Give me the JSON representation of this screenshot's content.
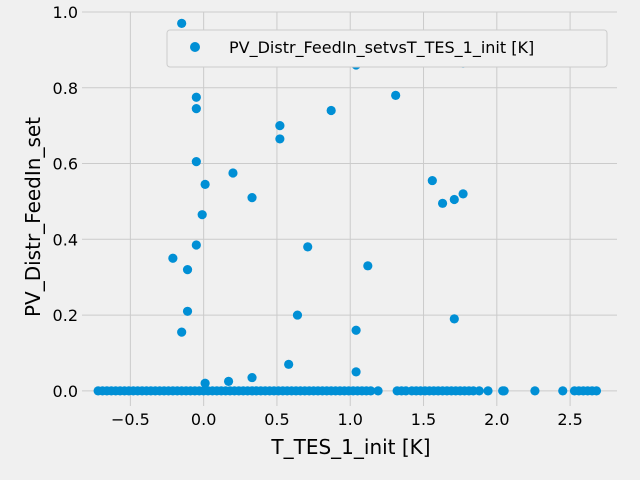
{
  "chart_data": {
    "type": "scatter",
    "xlabel": "T_TES_1_init [K]",
    "ylabel": "PV_Distr_FeedIn_set",
    "xlim": [
      -0.83,
      2.82
    ],
    "ylim": [
      -0.04,
      1.0
    ],
    "xticks": [
      "−0.5",
      "0.0",
      "0.5",
      "1.0",
      "1.5",
      "2.0",
      "2.5"
    ],
    "xtick_values": [
      -0.5,
      0.0,
      0.5,
      1.0,
      1.5,
      2.0,
      2.5
    ],
    "yticks": [
      "0.0",
      "0.2",
      "0.4",
      "0.6",
      "0.8",
      "1.0"
    ],
    "ytick_values": [
      0.0,
      0.2,
      0.4,
      0.6,
      0.8,
      1.0
    ],
    "grid": true,
    "legend_position": "top-right",
    "color": "#008fd5",
    "series": [
      {
        "name": "PV_Distr_FeedIn_setvsT_TES_1_init [K]",
        "x": [
          -0.15,
          0.64,
          1.04,
          1.77,
          -0.05,
          -0.05,
          1.31,
          0.87,
          0.52,
          0.52,
          -0.05,
          0.2,
          0.01,
          1.56,
          1.63,
          1.71,
          1.77,
          0.33,
          -0.01,
          0.71,
          -0.05,
          -0.21,
          -0.11,
          1.12,
          -0.11,
          0.64,
          1.04,
          1.71,
          -0.15,
          0.58,
          1.04,
          0.33,
          0.17,
          0.01,
          -0.72,
          -0.69,
          -0.66,
          -0.63,
          -0.6,
          -0.57,
          -0.54,
          -0.51,
          -0.48,
          -0.45,
          -0.42,
          -0.39,
          -0.36,
          -0.33,
          -0.3,
          -0.27,
          -0.24,
          -0.21,
          -0.18,
          -0.15,
          -0.12,
          -0.09,
          -0.06,
          -0.03,
          0.0,
          0.03,
          0.06,
          0.09,
          0.12,
          0.15,
          0.18,
          0.21,
          0.24,
          0.27,
          0.3,
          0.33,
          0.36,
          0.39,
          0.42,
          0.45,
          0.48,
          0.51,
          0.54,
          0.57,
          0.6,
          0.63,
          0.66,
          0.69,
          0.72,
          0.75,
          0.78,
          0.81,
          0.84,
          0.87,
          0.9,
          0.93,
          0.96,
          0.99,
          1.02,
          1.05,
          1.08,
          1.11,
          1.14,
          1.19,
          1.32,
          1.35,
          1.38,
          1.42,
          1.45,
          1.48,
          1.51,
          1.54,
          1.57,
          1.6,
          1.63,
          1.66,
          1.69,
          1.72,
          1.75,
          1.78,
          1.81,
          1.84,
          1.88,
          1.94,
          2.04,
          2.05,
          2.26,
          2.45,
          2.53,
          2.56,
          2.59,
          2.62,
          2.65,
          2.68
        ],
        "y": [
          0.97,
          0.87,
          0.86,
          0.865,
          0.775,
          0.745,
          0.78,
          0.74,
          0.7,
          0.665,
          0.605,
          0.575,
          0.545,
          0.555,
          0.495,
          0.505,
          0.52,
          0.51,
          0.465,
          0.38,
          0.385,
          0.35,
          0.32,
          0.33,
          0.21,
          0.2,
          0.16,
          0.19,
          0.155,
          0.07,
          0.05,
          0.035,
          0.025,
          0.02,
          0,
          0,
          0,
          0,
          0,
          0,
          0,
          0,
          0,
          0,
          0,
          0,
          0,
          0,
          0,
          0,
          0,
          0,
          0,
          0,
          0,
          0,
          0,
          0,
          0,
          0,
          0,
          0,
          0,
          0,
          0,
          0,
          0,
          0,
          0,
          0,
          0,
          0,
          0,
          0,
          0,
          0,
          0,
          0,
          0,
          0,
          0,
          0,
          0,
          0,
          0,
          0,
          0,
          0,
          0,
          0,
          0,
          0,
          0,
          0,
          0,
          0,
          0,
          0,
          0,
          0,
          0,
          0,
          0,
          0,
          0,
          0,
          0,
          0,
          0,
          0,
          0,
          0,
          0,
          0,
          0,
          0,
          0,
          0,
          0,
          0,
          0,
          0,
          0,
          0,
          0,
          0,
          0,
          0
        ]
      }
    ]
  }
}
